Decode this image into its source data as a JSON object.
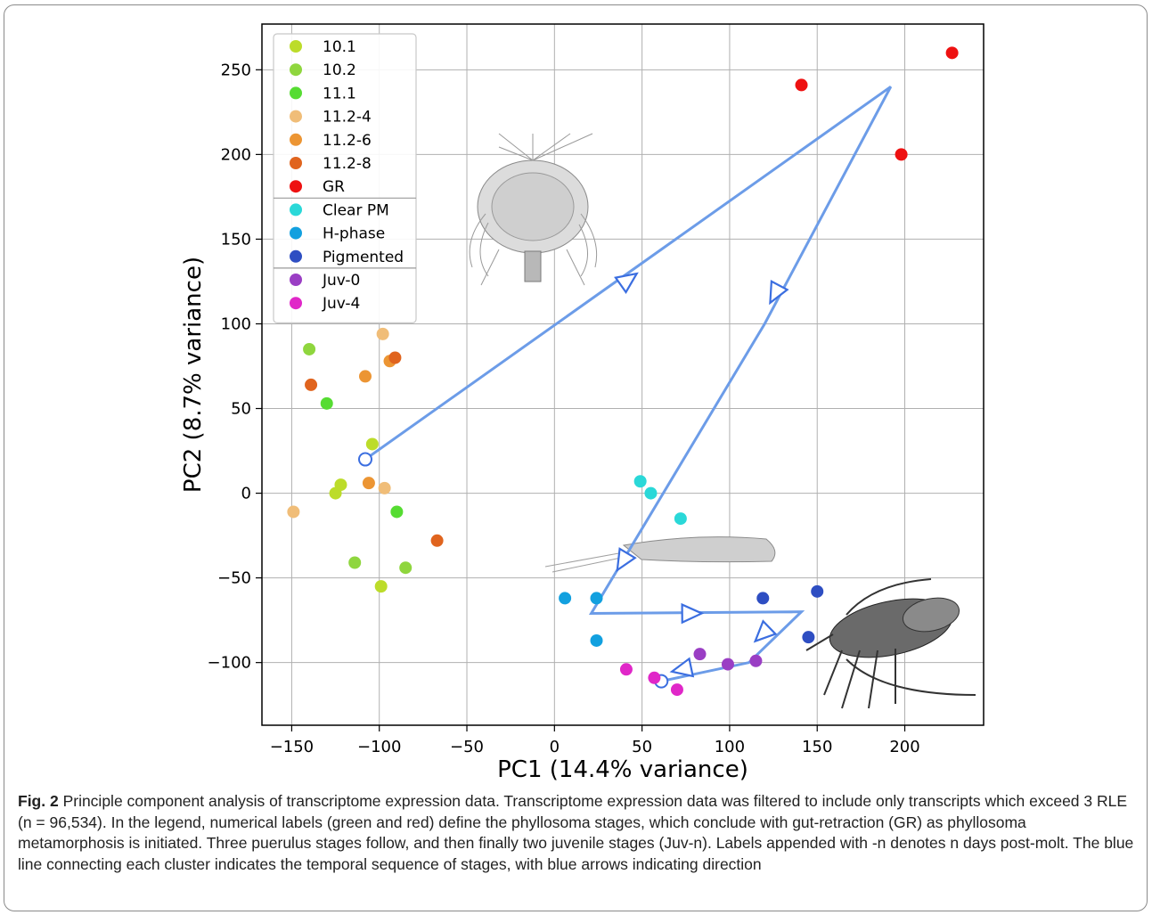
{
  "chart_data": {
    "type": "scatter",
    "xlabel": "PC1 (14.4% variance)",
    "ylabel": "PC2 (8.7% variance)",
    "xlim": [
      -167,
      245
    ],
    "ylim": [
      -137,
      277
    ],
    "xticks": [
      -150,
      -100,
      -50,
      0,
      50,
      100,
      150,
      200
    ],
    "yticks": [
      -100,
      -50,
      0,
      50,
      100,
      150,
      200,
      250
    ],
    "xtick_labels": [
      "−150",
      "−100",
      "−50",
      "0",
      "50",
      "100",
      "150",
      "200"
    ],
    "ytick_labels": [
      "−100",
      "−50",
      "0",
      "50",
      "100",
      "150",
      "200",
      "250"
    ],
    "grid": true,
    "legend_position": "top-left",
    "series": [
      {
        "name": "10.1",
        "color": "#bcdc2a",
        "points": [
          [
            -104,
            29
          ],
          [
            -122,
            5
          ],
          [
            -125,
            0
          ],
          [
            -99,
            -55
          ]
        ]
      },
      {
        "name": "10.2",
        "color": "#8fd63e",
        "points": [
          [
            -140,
            85
          ],
          [
            -114,
            -41
          ],
          [
            -85,
            -44
          ]
        ]
      },
      {
        "name": "11.1",
        "color": "#56dc32",
        "points": [
          [
            -130,
            53
          ],
          [
            -90,
            -11
          ]
        ]
      },
      {
        "name": "11.2-4",
        "color": "#f0bd78",
        "points": [
          [
            -98,
            94
          ],
          [
            -149,
            -11
          ],
          [
            -97,
            3
          ]
        ]
      },
      {
        "name": "11.2-6",
        "color": "#ec9533",
        "points": [
          [
            -108,
            69
          ],
          [
            -94,
            78
          ],
          [
            -106,
            6
          ]
        ]
      },
      {
        "name": "11.2-8",
        "color": "#e0641e",
        "points": [
          [
            -139,
            64
          ],
          [
            -91,
            80
          ],
          [
            -67,
            -28
          ]
        ]
      },
      {
        "name": "GR",
        "color": "#ee1111",
        "points": [
          [
            141,
            241
          ],
          [
            227,
            260
          ],
          [
            198,
            200
          ]
        ]
      },
      {
        "name": "Clear PM",
        "color": "#2ad8d8",
        "points": [
          [
            49,
            7
          ],
          [
            55,
            0
          ],
          [
            72,
            -15
          ]
        ]
      },
      {
        "name": "H-phase",
        "color": "#12a0df",
        "points": [
          [
            6,
            -62
          ],
          [
            24,
            -62
          ],
          [
            24,
            -87
          ]
        ]
      },
      {
        "name": "Pigmented",
        "color": "#2e4ec2",
        "points": [
          [
            119,
            -62
          ],
          [
            150,
            -58
          ],
          [
            145,
            -85
          ]
        ]
      },
      {
        "name": "Juv-0",
        "color": "#9a3ec4",
        "points": [
          [
            83,
            -95
          ],
          [
            99,
            -101
          ],
          [
            115,
            -99
          ]
        ]
      },
      {
        "name": "Juv-4",
        "color": "#e027c8",
        "points": [
          [
            41,
            -104
          ],
          [
            57,
            -109
          ],
          [
            70,
            -116
          ]
        ]
      }
    ],
    "trajectory": {
      "color": "#6c9ce8",
      "points": [
        [
          -108,
          20
        ],
        [
          192,
          240
        ],
        [
          120,
          100
        ],
        [
          21,
          -71
        ],
        [
          141,
          -70
        ],
        [
          111,
          -100
        ],
        [
          61,
          -111
        ]
      ],
      "arrow_positions": [
        [
          42,
          126
        ],
        [
          126,
          118
        ],
        [
          39,
          -40
        ],
        [
          78,
          -71
        ],
        [
          119,
          -83
        ],
        [
          73,
          -104
        ]
      ],
      "start_marker": [
        -108,
        20
      ],
      "end_marker": [
        61,
        -111
      ]
    }
  },
  "caption": {
    "fig_label": "Fig. 2",
    "text": " Principle component analysis of transcriptome expression data. Transcriptome expression data was filtered to include only transcripts which exceed 3 RLE (n = 96,534). In the legend, numerical labels (green and red) define the phyllosoma stages, which conclude with gut-retraction (GR) as phyllosoma metamorphosis is initiated. Three puerulus stages follow, and then finally two juvenile stages (Juv-n). Labels appended with -n denotes n days post-molt. The blue line connecting each cluster indicates the temporal sequence of stages, with blue arrows indicating direction"
  },
  "illustrations": [
    "phyllosoma-larva-image",
    "puerulus-image",
    "juvenile-lobster-image"
  ]
}
